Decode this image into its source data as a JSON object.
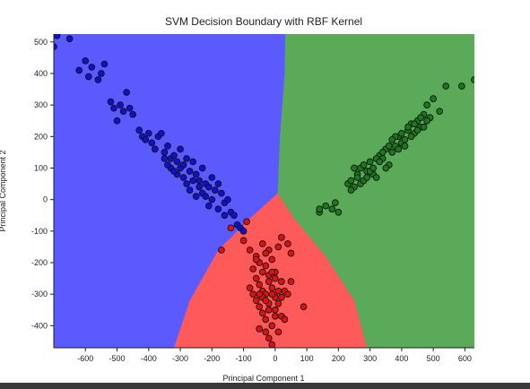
{
  "chart_data": {
    "type": "scatter",
    "title": "SVM Decision Boundary with RBF Kernel",
    "xlabel": "Principal Component 1",
    "ylabel": "Principal Component 2",
    "xlim": [
      -700,
      630
    ],
    "ylim": [
      -470,
      525
    ],
    "x_ticks": [
      "-600",
      "-500",
      "-400",
      "-300",
      "-200",
      "-100",
      "0",
      "100",
      "200",
      "300",
      "400",
      "500",
      "600"
    ],
    "y_ticks": [
      "500",
      "400",
      "300",
      "200",
      "100",
      "0",
      "-100",
      "-200",
      "-300",
      "-400"
    ],
    "x_tick_values": [
      -600,
      -500,
      -400,
      -300,
      -200,
      -100,
      0,
      100,
      200,
      300,
      400,
      500,
      600
    ],
    "y_tick_values": [
      500,
      400,
      300,
      200,
      100,
      0,
      -100,
      -200,
      -300,
      -400
    ],
    "grid": false,
    "regions": [
      {
        "class": "blue",
        "color": "#5a5aff"
      },
      {
        "class": "red",
        "color": "#ff5a5a"
      },
      {
        "class": "green",
        "color": "#5aaa5a"
      }
    ],
    "boundary": {
      "junction": [
        8,
        20
      ],
      "blue_green": [
        [
          8,
          20
        ],
        [
          15,
          200
        ],
        [
          30,
          400
        ],
        [
          32,
          525
        ]
      ],
      "blue_red": [
        [
          8,
          20
        ],
        [
          -80,
          -60
        ],
        [
          -180,
          -160
        ],
        [
          -270,
          -320
        ],
        [
          -320,
          -470
        ]
      ],
      "red_green": [
        [
          8,
          20
        ],
        [
          60,
          -60
        ],
        [
          160,
          -180
        ],
        [
          250,
          -320
        ],
        [
          290,
          -470
        ]
      ]
    },
    "series": [
      {
        "class": "blue",
        "color": "#1010d0",
        "points": [
          [
            -690,
            520
          ],
          [
            -700,
            485
          ],
          [
            -650,
            510
          ],
          [
            -620,
            410
          ],
          [
            -600,
            440
          ],
          [
            -590,
            390
          ],
          [
            -580,
            420
          ],
          [
            -560,
            380
          ],
          [
            -550,
            400
          ],
          [
            -540,
            430
          ],
          [
            -520,
            310
          ],
          [
            -510,
            290
          ],
          [
            -500,
            250
          ],
          [
            -490,
            300
          ],
          [
            -480,
            280
          ],
          [
            -470,
            340
          ],
          [
            -460,
            290
          ],
          [
            -450,
            270
          ],
          [
            -430,
            220
          ],
          [
            -420,
            200
          ],
          [
            -410,
            190
          ],
          [
            -400,
            210
          ],
          [
            -390,
            180
          ],
          [
            -380,
            160
          ],
          [
            -370,
            200
          ],
          [
            -360,
            210
          ],
          [
            -350,
            150
          ],
          [
            -340,
            170
          ],
          [
            -330,
            130
          ],
          [
            -320,
            140
          ],
          [
            -310,
            120
          ],
          [
            -300,
            160
          ],
          [
            -300,
            100
          ],
          [
            -290,
            110
          ],
          [
            -280,
            130
          ],
          [
            -270,
            90
          ],
          [
            -260,
            120
          ],
          [
            -250,
            80
          ],
          [
            -240,
            60
          ],
          [
            -230,
            100
          ],
          [
            -220,
            50
          ],
          [
            -210,
            40
          ],
          [
            -200,
            70
          ],
          [
            -190,
            30
          ],
          [
            -180,
            50
          ],
          [
            -170,
            20
          ],
          [
            -160,
            -10
          ],
          [
            -150,
            0
          ],
          [
            -140,
            -40
          ],
          [
            -130,
            -50
          ],
          [
            -120,
            -80
          ],
          [
            -110,
            -90
          ],
          [
            -100,
            -100
          ],
          [
            -350,
            130
          ],
          [
            -330,
            100
          ],
          [
            -310,
            80
          ],
          [
            -290,
            70
          ],
          [
            -260,
            60
          ],
          [
            -240,
            40
          ],
          [
            -230,
            20
          ],
          [
            -220,
            10
          ],
          [
            -200,
            0
          ],
          [
            -180,
            -30
          ],
          [
            -160,
            -50
          ],
          [
            -340,
            110
          ],
          [
            -320,
            90
          ],
          [
            -280,
            50
          ],
          [
            -270,
            30
          ],
          [
            -250,
            10
          ],
          [
            -210,
            -20
          ]
        ]
      },
      {
        "class": "red",
        "color": "#e01010",
        "points": [
          [
            -90,
            -70
          ],
          [
            -140,
            -90
          ],
          [
            -170,
            -160
          ],
          [
            -100,
            -130
          ],
          [
            -80,
            -160
          ],
          [
            -60,
            -180
          ],
          [
            -40,
            -140
          ],
          [
            -50,
            -200
          ],
          [
            -30,
            -210
          ],
          [
            -20,
            -160
          ],
          [
            -10,
            -190
          ],
          [
            0,
            -230
          ],
          [
            10,
            -150
          ],
          [
            20,
            -120
          ],
          [
            40,
            -140
          ],
          [
            50,
            -170
          ],
          [
            -70,
            -220
          ],
          [
            -60,
            -250
          ],
          [
            -50,
            -270
          ],
          [
            -40,
            -290
          ],
          [
            -30,
            -300
          ],
          [
            -20,
            -260
          ],
          [
            -10,
            -280
          ],
          [
            0,
            -310
          ],
          [
            10,
            -330
          ],
          [
            20,
            -260
          ],
          [
            30,
            -290
          ],
          [
            40,
            -300
          ],
          [
            -60,
            -320
          ],
          [
            -50,
            -340
          ],
          [
            -40,
            -360
          ],
          [
            -30,
            -380
          ],
          [
            -20,
            -350
          ],
          [
            -10,
            -400
          ],
          [
            0,
            -370
          ],
          [
            10,
            -420
          ],
          [
            20,
            -370
          ],
          [
            30,
            -380
          ],
          [
            -70,
            -300
          ],
          [
            -80,
            -280
          ],
          [
            -20,
            -440
          ],
          [
            -10,
            -460
          ],
          [
            -30,
            -420
          ],
          [
            -50,
            -410
          ],
          [
            -40,
            -230
          ],
          [
            -20,
            -240
          ],
          [
            0,
            -250
          ],
          [
            -60,
            -190
          ],
          [
            -30,
            -170
          ],
          [
            50,
            -260
          ],
          [
            90,
            -340
          ],
          [
            -40,
            -310
          ],
          [
            -20,
            -330
          ],
          [
            0,
            -350
          ],
          [
            10,
            -290
          ],
          [
            -10,
            -230
          ],
          [
            -50,
            -300
          ],
          [
            -30,
            -320
          ],
          [
            -10,
            -300
          ],
          [
            20,
            -310
          ]
        ]
      },
      {
        "class": "green",
        "color": "#1a7a1a",
        "points": [
          [
            140,
            -40
          ],
          [
            140,
            -30
          ],
          [
            160,
            -20
          ],
          [
            180,
            -30
          ],
          [
            190,
            -10
          ],
          [
            200,
            -40
          ],
          [
            230,
            50
          ],
          [
            240,
            60
          ],
          [
            250,
            40
          ],
          [
            260,
            80
          ],
          [
            270,
            100
          ],
          [
            280,
            110
          ],
          [
            290,
            90
          ],
          [
            300,
            120
          ],
          [
            310,
            80
          ],
          [
            320,
            70
          ],
          [
            330,
            140
          ],
          [
            340,
            130
          ],
          [
            350,
            160
          ],
          [
            360,
            110
          ],
          [
            370,
            150
          ],
          [
            380,
            170
          ],
          [
            390,
            200
          ],
          [
            400,
            180
          ],
          [
            410,
            190
          ],
          [
            420,
            220
          ],
          [
            430,
            240
          ],
          [
            440,
            210
          ],
          [
            450,
            250
          ],
          [
            460,
            230
          ],
          [
            470,
            270
          ],
          [
            480,
            300
          ],
          [
            490,
            260
          ],
          [
            500,
            320
          ],
          [
            520,
            280
          ],
          [
            540,
            360
          ],
          [
            590,
            360
          ],
          [
            630,
            380
          ],
          [
            250,
            100
          ],
          [
            260,
            70
          ],
          [
            270,
            50
          ],
          [
            280,
            60
          ],
          [
            300,
            90
          ],
          [
            310,
            100
          ],
          [
            320,
            130
          ],
          [
            340,
            150
          ],
          [
            360,
            170
          ],
          [
            380,
            200
          ],
          [
            400,
            210
          ],
          [
            420,
            230
          ],
          [
            440,
            240
          ],
          [
            460,
            260
          ],
          [
            470,
            230
          ],
          [
            480,
            250
          ],
          [
            240,
            30
          ],
          [
            290,
            70
          ],
          [
            330,
            120
          ],
          [
            350,
            100
          ],
          [
            370,
            190
          ],
          [
            390,
            160
          ],
          [
            410,
            170
          ],
          [
            430,
            200
          ],
          [
            450,
            220
          ]
        ]
      }
    ]
  }
}
